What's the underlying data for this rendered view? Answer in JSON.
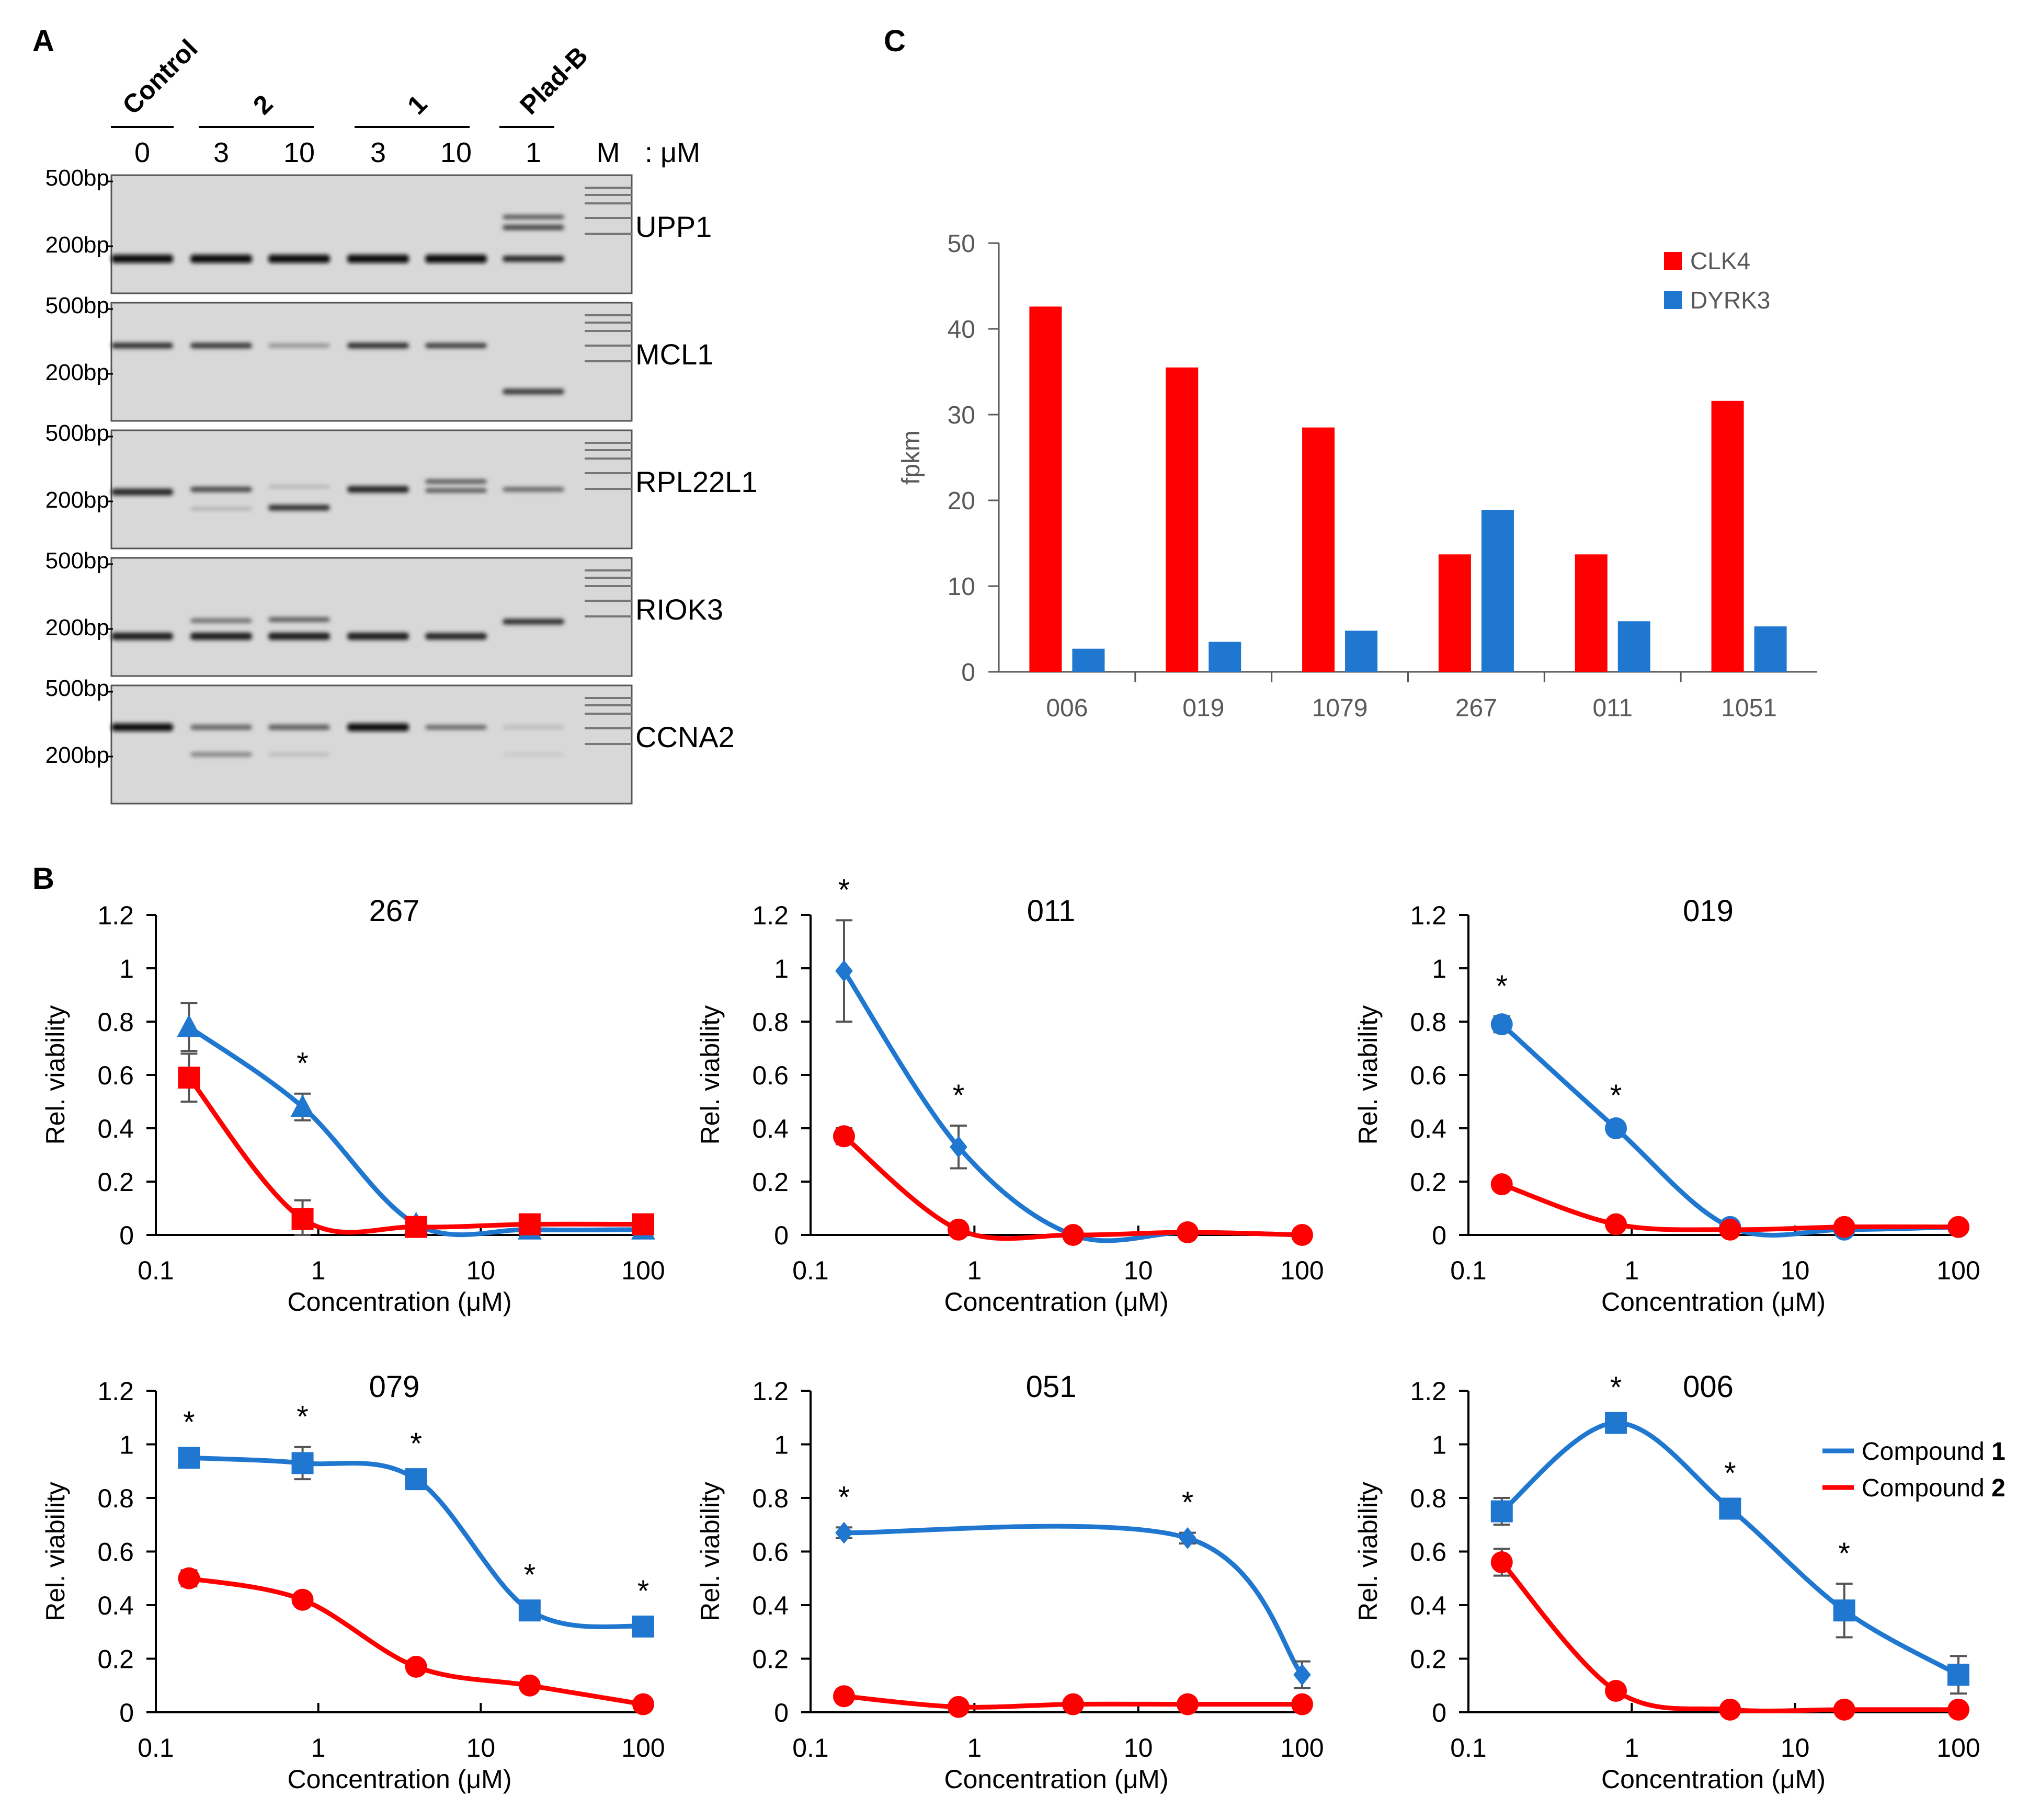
{
  "panel_labels": {
    "a": "A",
    "b": "B",
    "c": "C"
  },
  "gel": {
    "group_labels": [
      "Control",
      "2",
      "1",
      "Plad-B"
    ],
    "lane_values": [
      "0",
      "3",
      "10",
      "3",
      "10",
      "1",
      "M"
    ],
    "unit": ": μM",
    "size_markers": [
      "500bp",
      "200bp"
    ],
    "genes": [
      "UPP1",
      "MCL1",
      "RPL22L1",
      "RIOK3",
      "CCNA2"
    ]
  },
  "chart_data": [
    {
      "type": "bar",
      "id": "fpkm",
      "title": "",
      "categories": [
        "006",
        "019",
        "1079",
        "267",
        "011",
        "1051"
      ],
      "series": [
        {
          "name": "CLK4",
          "color": "#ff0000",
          "values": [
            42.6,
            35.5,
            28.5,
            13.7,
            13.7,
            31.6
          ]
        },
        {
          "name": "DYRK3",
          "color": "#1f77d0",
          "values": [
            2.7,
            3.5,
            4.8,
            18.9,
            5.9,
            5.3
          ]
        }
      ],
      "ylabel": "fpkm",
      "xlabel": "",
      "ylim": [
        0,
        50
      ],
      "yticks": [
        "0",
        "10",
        "20",
        "30",
        "40",
        "50"
      ],
      "legend": "top-right"
    },
    {
      "type": "line",
      "id": "v267",
      "title": "267",
      "marker": "triangle",
      "x": [
        0.16,
        0.8,
        4,
        20,
        100
      ],
      "xticks": [
        "0.1",
        "1",
        "10",
        "100"
      ],
      "yticks": [
        "0",
        "0.2",
        "0.4",
        "0.6",
        "0.8",
        "1",
        "1.2"
      ],
      "xlabel": "Concentration (μM)",
      "ylabel": "Rel. viability",
      "ylim": [
        0,
        1.2
      ],
      "series": [
        {
          "name": "Compound 1",
          "color": "#1f77d0",
          "values": [
            0.78,
            0.48,
            0.04,
            0.02,
            0.02
          ],
          "errors": [
            0.09,
            0.05,
            0.02,
            0,
            0
          ]
        },
        {
          "name": "Compound 2",
          "color": "#ff0000",
          "values": [
            0.59,
            0.06,
            0.03,
            0.04,
            0.04
          ],
          "errors": [
            0.09,
            0.07,
            0.02,
            0,
            0
          ]
        }
      ],
      "significance_x": [
        0.8
      ],
      "significance_label": "*"
    },
    {
      "type": "line",
      "id": "v011",
      "title": "011",
      "marker": "diamond",
      "x": [
        0.16,
        0.8,
        4,
        20,
        100
      ],
      "xticks": [
        "0.1",
        "1",
        "10",
        "100"
      ],
      "yticks": [
        "0",
        "0.2",
        "0.4",
        "0.6",
        "0.8",
        "1",
        "1.2"
      ],
      "xlabel": "Concentration (μM)",
      "ylabel": "Rel. viability",
      "ylim": [
        0,
        1.2
      ],
      "series": [
        {
          "name": "Compound 1",
          "color": "#1f77d0",
          "values": [
            0.99,
            0.33,
            0.0,
            0.01,
            0.0
          ],
          "errors": [
            0.19,
            0.08,
            0,
            0,
            0
          ]
        },
        {
          "name": "Compound 2",
          "color": "#ff0000",
          "values": [
            0.37,
            0.02,
            0.0,
            0.01,
            0.0
          ],
          "errors": [
            0.03,
            0,
            0,
            0,
            0
          ]
        }
      ],
      "significance_x": [
        0.16,
        0.8
      ],
      "significance_label": "*"
    },
    {
      "type": "line",
      "id": "v019",
      "title": "019",
      "marker": "circle",
      "x": [
        0.16,
        0.8,
        4,
        20,
        100
      ],
      "xticks": [
        "0.1",
        "1",
        "10",
        "100"
      ],
      "yticks": [
        "0",
        "0.2",
        "0.4",
        "0.6",
        "0.8",
        "1",
        "1.2"
      ],
      "xlabel": "Concentration (μM)",
      "ylabel": "Rel. viability",
      "ylim": [
        0,
        1.2
      ],
      "series": [
        {
          "name": "Compound 1",
          "color": "#1f77d0",
          "values": [
            0.79,
            0.4,
            0.03,
            0.02,
            0.03
          ],
          "errors": [
            0.03,
            0.01,
            0,
            0,
            0
          ]
        },
        {
          "name": "Compound 2",
          "color": "#ff0000",
          "values": [
            0.19,
            0.04,
            0.02,
            0.03,
            0.03
          ],
          "errors": [
            0,
            0,
            0,
            0,
            0
          ]
        }
      ],
      "significance_x": [
        0.16,
        0.8
      ],
      "significance_label": "*"
    },
    {
      "type": "line",
      "id": "v079",
      "title": "079",
      "marker": "square",
      "x": [
        0.16,
        0.8,
        4,
        20,
        100
      ],
      "xticks": [
        "0.1",
        "1",
        "10",
        "100"
      ],
      "yticks": [
        "0",
        "0.2",
        "0.4",
        "0.6",
        "0.8",
        "1",
        "1.2"
      ],
      "xlabel": "Concentration (μM)",
      "ylabel": "Rel. viability",
      "ylim": [
        0,
        1.2
      ],
      "series": [
        {
          "name": "Compound 1",
          "color": "#1f77d0",
          "values": [
            0.95,
            0.93,
            0.87,
            0.38,
            0.32
          ],
          "errors": [
            0.02,
            0.06,
            0.02,
            0.02,
            0.02
          ]
        },
        {
          "name": "Compound 2",
          "color": "#ff0000",
          "values": [
            0.5,
            0.42,
            0.17,
            0.1,
            0.03
          ],
          "errors": [
            0.03,
            0.02,
            0.02,
            0,
            0
          ]
        }
      ],
      "significance_x": [
        0.16,
        0.8,
        4,
        20,
        100
      ],
      "significance_label": "*"
    },
    {
      "type": "line",
      "id": "v051",
      "title": "051",
      "marker": "diamond",
      "x": [
        0.16,
        0.8,
        4,
        20,
        100
      ],
      "xticks": [
        "0.1",
        "1",
        "10",
        "100"
      ],
      "yticks": [
        "0",
        "0.2",
        "0.4",
        "0.6",
        "0.8",
        "1",
        "1.2"
      ],
      "xlabel": "Concentration (μM)",
      "ylabel": "Rel. viability",
      "ylim": [
        0,
        1.2
      ],
      "series": [
        {
          "name": "Compound 1",
          "color": "#1f77d0",
          "values": [
            0.67,
            null,
            null,
            0.65,
            0.14
          ],
          "errors": [
            0.02,
            0,
            0,
            0.02,
            0.05
          ]
        },
        {
          "name": "Compound 2",
          "color": "#ff0000",
          "values": [
            0.06,
            0.02,
            0.03,
            0.03,
            0.03
          ],
          "errors": [
            0.02,
            0,
            0,
            0,
            0
          ]
        }
      ],
      "significance_x": [
        0.16,
        20
      ],
      "significance_label": "*"
    },
    {
      "type": "line",
      "id": "v006",
      "title": "006",
      "marker": "square",
      "x": [
        0.16,
        0.8,
        4,
        20,
        100
      ],
      "xticks": [
        "0.1",
        "1",
        "10",
        "100"
      ],
      "yticks": [
        "0",
        "0.2",
        "0.4",
        "0.6",
        "0.8",
        "1",
        "1.2"
      ],
      "xlabel": "Concentration (μM)",
      "ylabel": "Rel. viability",
      "ylim": [
        0,
        1.2
      ],
      "series": [
        {
          "name": "Compound 1",
          "color": "#1f77d0",
          "values": [
            0.75,
            1.08,
            0.76,
            0.38,
            0.14
          ],
          "errors": [
            0.05,
            0.02,
            0.02,
            0.1,
            0.07
          ]
        },
        {
          "name": "Compound 2",
          "color": "#ff0000",
          "values": [
            0.56,
            0.08,
            0.01,
            0.01,
            0.01
          ],
          "errors": [
            0.05,
            0.02,
            0,
            0,
            0
          ]
        }
      ],
      "significance_x": [
        0.8,
        4,
        20
      ],
      "significance_label": "*",
      "legend": [
        {
          "prefix": "Compound ",
          "bold": "1"
        },
        {
          "prefix": "Compound ",
          "bold": "2"
        }
      ]
    }
  ]
}
